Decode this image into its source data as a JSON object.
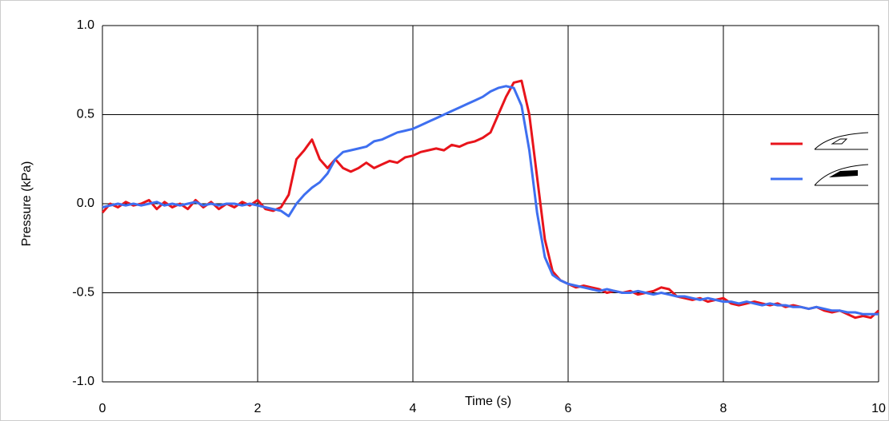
{
  "chart_data": {
    "type": "line",
    "xlabel": "Time (s)",
    "ylabel": "Pressure (kPa)",
    "xlim": [
      0,
      10
    ],
    "xticks": [
      0,
      2,
      4,
      6,
      8,
      10
    ],
    "ylim": [
      -1,
      1
    ],
    "yticks": [
      {
        "value": -1,
        "label": "-1.0"
      },
      -0.5,
      {
        "value": 0,
        "label": "0.0"
      },
      0.5,
      {
        "value": 1,
        "label": "1.0"
      }
    ],
    "grid": true,
    "x": [
      0,
      0.1,
      0.2,
      0.3,
      0.4,
      0.5,
      0.6,
      0.7,
      0.8,
      0.9,
      1,
      1.1,
      1.2,
      1.3,
      1.4,
      1.5,
      1.6,
      1.7,
      1.8,
      1.9,
      2,
      2.1,
      2.2,
      2.3,
      2.4,
      2.5,
      2.6,
      2.7,
      2.8,
      2.9,
      3,
      3.1,
      3.2,
      3.3,
      3.4,
      3.5,
      3.6,
      3.7,
      3.8,
      3.9,
      4,
      4.1,
      4.2,
      4.3,
      4.4,
      4.5,
      4.6,
      4.7,
      4.8,
      4.9,
      5,
      5.1,
      5.2,
      5.3,
      5.4,
      5.5,
      5.6,
      5.7,
      5.8,
      5.9,
      6,
      6.1,
      6.2,
      6.3,
      6.4,
      6.5,
      6.6,
      6.7,
      6.8,
      6.9,
      7,
      7.1,
      7.2,
      7.3,
      7.4,
      7.5,
      7.6,
      7.7,
      7.8,
      7.9,
      8,
      8.1,
      8.2,
      8.3,
      8.4,
      8.5,
      8.6,
      8.7,
      8.8,
      8.9,
      9,
      9.1,
      9.2,
      9.3,
      9.4,
      9.5,
      9.6,
      9.7,
      9.8,
      9.9,
      10
    ],
    "series": [
      {
        "color": "#e8141b",
        "values": [
          -0.05,
          0.0,
          -0.02,
          0.01,
          -0.01,
          0.0,
          0.02,
          -0.03,
          0.01,
          -0.02,
          0.0,
          -0.03,
          0.02,
          -0.02,
          0.01,
          -0.03,
          0.0,
          -0.02,
          0.01,
          -0.01,
          0.02,
          -0.03,
          -0.04,
          -0.02,
          0.05,
          0.25,
          0.3,
          0.36,
          0.25,
          0.2,
          0.25,
          0.2,
          0.18,
          0.2,
          0.23,
          0.2,
          0.22,
          0.24,
          0.23,
          0.26,
          0.27,
          0.29,
          0.3,
          0.31,
          0.3,
          0.33,
          0.32,
          0.34,
          0.35,
          0.37,
          0.4,
          0.5,
          0.6,
          0.68,
          0.69,
          0.5,
          0.15,
          -0.2,
          -0.38,
          -0.43,
          -0.45,
          -0.47,
          -0.46,
          -0.47,
          -0.48,
          -0.5,
          -0.49,
          -0.5,
          -0.49,
          -0.51,
          -0.5,
          -0.49,
          -0.47,
          -0.48,
          -0.52,
          -0.53,
          -0.54,
          -0.53,
          -0.55,
          -0.54,
          -0.53,
          -0.56,
          -0.57,
          -0.56,
          -0.55,
          -0.56,
          -0.57,
          -0.56,
          -0.58,
          -0.57,
          -0.58,
          -0.59,
          -0.58,
          -0.6,
          -0.61,
          -0.6,
          -0.62,
          -0.64,
          -0.63,
          -0.64,
          -0.6
        ]
      },
      {
        "color": "#3e6ff0",
        "values": [
          -0.02,
          -0.01,
          0.0,
          -0.01,
          0.0,
          -0.01,
          0.0,
          0.01,
          -0.01,
          0.0,
          -0.01,
          0.0,
          0.01,
          -0.01,
          0.0,
          -0.01,
          0.0,
          0.0,
          -0.01,
          0.0,
          -0.01,
          -0.02,
          -0.03,
          -0.04,
          -0.07,
          0.0,
          0.05,
          0.09,
          0.12,
          0.17,
          0.25,
          0.29,
          0.3,
          0.31,
          0.32,
          0.35,
          0.36,
          0.38,
          0.4,
          0.41,
          0.42,
          0.44,
          0.46,
          0.48,
          0.5,
          0.52,
          0.54,
          0.56,
          0.58,
          0.6,
          0.63,
          0.65,
          0.66,
          0.65,
          0.55,
          0.3,
          -0.05,
          -0.3,
          -0.4,
          -0.43,
          -0.45,
          -0.46,
          -0.47,
          -0.48,
          -0.49,
          -0.48,
          -0.49,
          -0.5,
          -0.5,
          -0.49,
          -0.5,
          -0.51,
          -0.5,
          -0.51,
          -0.52,
          -0.52,
          -0.53,
          -0.54,
          -0.53,
          -0.54,
          -0.55,
          -0.55,
          -0.56,
          -0.55,
          -0.56,
          -0.57,
          -0.56,
          -0.57,
          -0.57,
          -0.58,
          -0.58,
          -0.59,
          -0.58,
          -0.59,
          -0.6,
          -0.6,
          -0.61,
          -0.61,
          -0.62,
          -0.62,
          -0.62
        ]
      }
    ]
  }
}
